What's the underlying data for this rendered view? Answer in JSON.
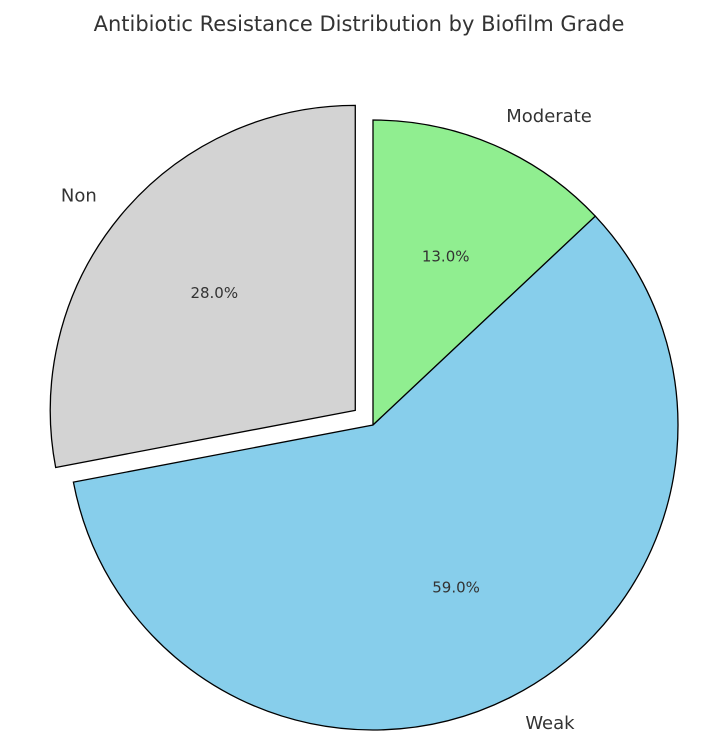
{
  "chart_data": {
    "type": "pie",
    "title": "Antibiotic Resistance Distribution by Biofilm Grade",
    "categories": [
      "Moderate",
      "Weak",
      "Non"
    ],
    "values": [
      13.0,
      59.0,
      28.0
    ],
    "value_labels": [
      "13.0%",
      "59.0%",
      "28.0%"
    ],
    "colors": [
      "#90ee90",
      "#87ceeb",
      "#d3d3d3"
    ],
    "exploded": [
      "Non"
    ],
    "start_angle": "top, clockwise",
    "legend": "none"
  }
}
